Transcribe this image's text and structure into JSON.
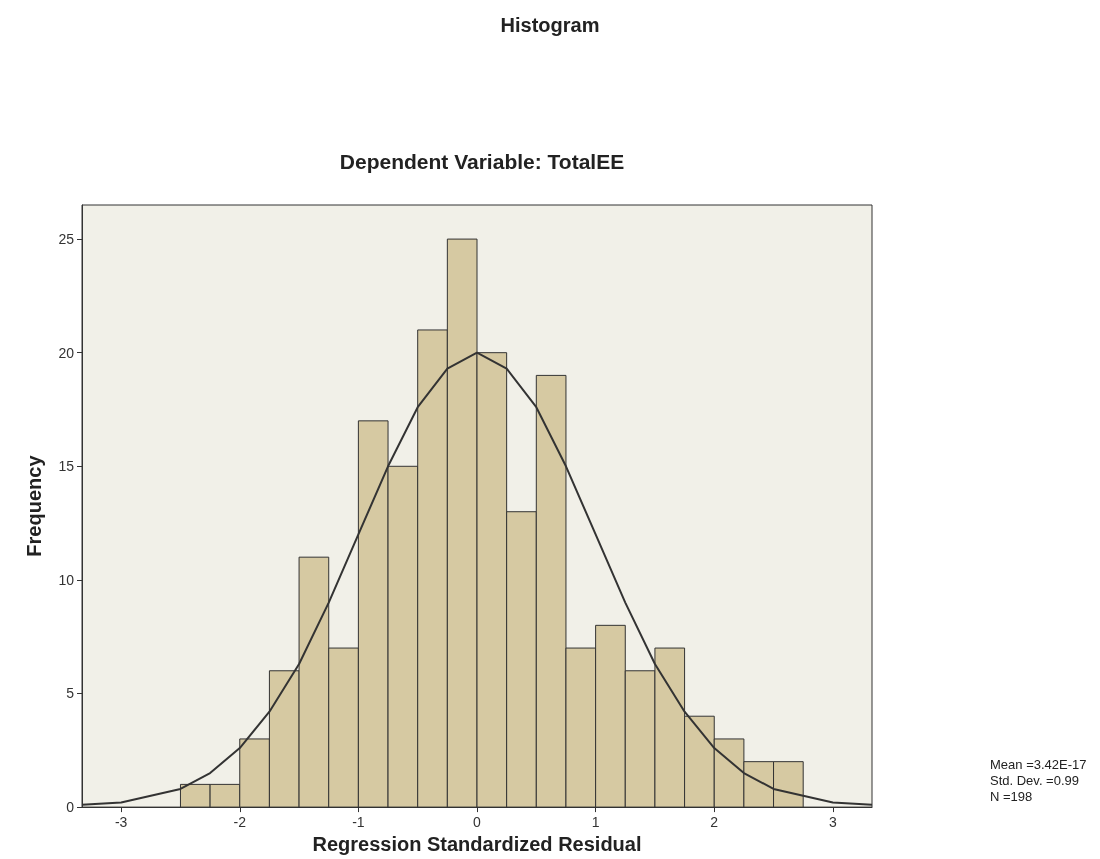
{
  "chart_data": {
    "type": "histogram",
    "title": "Histogram",
    "subtitle": "Dependent Variable: TotalEE",
    "xlabel": "Regression Standardized Residual",
    "ylabel": "Frequency",
    "bins": [
      -2.5,
      -2.25,
      -2,
      -1.75,
      -1.5,
      -1.25,
      -1,
      -0.75,
      -0.5,
      -0.25,
      0,
      0.25,
      0.5,
      0.75,
      1,
      1.25,
      1.5,
      1.75,
      2,
      2.25,
      2.5,
      2.75
    ],
    "values": [
      1,
      1,
      3,
      6,
      11,
      7,
      17,
      15,
      21,
      25,
      20,
      13,
      19,
      7,
      8,
      6,
      7,
      4,
      3,
      2,
      2
    ],
    "color": "#d6c9a2",
    "series": [
      {
        "type": "line",
        "color": "#333333",
        "x": [
          -3.33,
          -3,
          -2.5,
          -2.25,
          -2,
          -1.75,
          -1.5,
          -1.25,
          -1,
          -0.75,
          -0.5,
          -0.25,
          0,
          0.25,
          0.5,
          0.75,
          1,
          1.25,
          1.5,
          1.75,
          2,
          2.25,
          2.5,
          3,
          3.33
        ],
        "values": [
          0.1,
          0.2,
          0.8,
          1.5,
          2.6,
          4.2,
          6.3,
          9,
          12,
          15,
          17.6,
          19.3,
          20,
          19.3,
          17.6,
          15,
          12,
          9,
          6.3,
          4.2,
          2.6,
          1.5,
          0.8,
          0.2,
          0.1
        ]
      }
    ],
    "xlim": [
      -3.33,
      3.33
    ],
    "xticks": [
      -3,
      -2,
      -1,
      0,
      1,
      2,
      3
    ],
    "ylim": [
      0,
      26.5
    ],
    "yticks": [
      0,
      5,
      10,
      15,
      20,
      25
    ],
    "grid": false,
    "marker": "none",
    "line_style": "solid",
    "annotations": [
      "Mean =3.42E-17",
      "Std. Dev. =0.99",
      "N =198"
    ]
  }
}
